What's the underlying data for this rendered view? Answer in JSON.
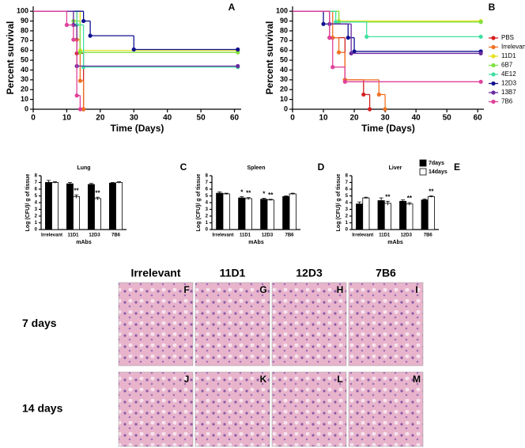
{
  "chart_data": [
    {
      "type": "survival",
      "panel": "A",
      "x_label": "Time (Days)",
      "y_label": "Percent survival",
      "xlim": [
        0,
        62
      ],
      "xticks": [
        0,
        10,
        20,
        30,
        40,
        50,
        60
      ],
      "ylim": [
        0,
        105
      ],
      "yticks": [
        0,
        10,
        20,
        30,
        40,
        50,
        60,
        70,
        80,
        90,
        100
      ],
      "series": [
        {
          "color": "#d42020",
          "x": [
            0,
            13,
            15
          ],
          "values": [
            100,
            57,
            0
          ]
        },
        {
          "color": "#f07020",
          "x": [
            0,
            13,
            14,
            15
          ],
          "values": [
            100,
            71,
            29,
            0
          ]
        },
        {
          "color": "#e8e020",
          "x": [
            0,
            14,
            61
          ],
          "values": [
            100,
            60,
            60
          ]
        },
        {
          "color": "#80e040",
          "x": [
            0,
            12,
            14,
            61
          ],
          "values": [
            100,
            90,
            58,
            58
          ]
        },
        {
          "color": "#40e0a0",
          "x": [
            0,
            13,
            15,
            61
          ],
          "values": [
            100,
            86,
            43,
            43
          ]
        },
        {
          "color": "#101090",
          "x": [
            0,
            15,
            17,
            30,
            61
          ],
          "values": [
            100,
            90,
            75,
            61,
            61
          ]
        },
        {
          "color": "#6a2aa0",
          "x": [
            0,
            12,
            13,
            61
          ],
          "values": [
            100,
            86,
            44,
            44
          ]
        },
        {
          "color": "#e0409a",
          "x": [
            0,
            10,
            12,
            13,
            14
          ],
          "values": [
            100,
            86,
            71,
            14,
            0
          ]
        }
      ]
    },
    {
      "type": "survival",
      "panel": "B",
      "x_label": "Time (Days)",
      "y_label": "Percent survival",
      "xlim": [
        0,
        62
      ],
      "xticks": [
        0,
        10,
        20,
        30,
        40,
        50,
        60
      ],
      "ylim": [
        0,
        105
      ],
      "yticks": [
        0,
        10,
        20,
        30,
        40,
        50,
        60,
        70,
        80,
        90,
        100
      ],
      "series": [
        {
          "name": "PBS",
          "color": "#d42020",
          "x": [
            0,
            12,
            17,
            23,
            25
          ],
          "values": [
            100,
            73,
            30,
            15,
            0
          ]
        },
        {
          "name": "Irrelevant",
          "color": "#f07020",
          "x": [
            0,
            13,
            15,
            17,
            28,
            30
          ],
          "values": [
            100,
            73,
            58,
            30,
            15,
            0
          ]
        },
        {
          "name": "11D1",
          "color": "#e8e020",
          "x": [
            0,
            15,
            61
          ],
          "values": [
            100,
            90,
            90
          ]
        },
        {
          "name": "6B7",
          "color": "#80e040",
          "x": [
            0,
            15,
            61
          ],
          "values": [
            100,
            89,
            89
          ]
        },
        {
          "name": "4E12",
          "color": "#40e0a0",
          "x": [
            0,
            14,
            24,
            61
          ],
          "values": [
            100,
            89,
            74,
            74
          ]
        },
        {
          "name": "12D3",
          "color": "#101090",
          "x": [
            0,
            10,
            18,
            20,
            61
          ],
          "values": [
            100,
            87,
            73,
            59,
            59
          ]
        },
        {
          "name": "13B7",
          "color": "#6a2aa0",
          "x": [
            0,
            12,
            19,
            61
          ],
          "values": [
            100,
            87,
            57,
            57
          ]
        },
        {
          "name": "7B6",
          "color": "#e0409a",
          "x": [
            0,
            12,
            13,
            17,
            61
          ],
          "values": [
            100,
            73,
            43,
            28,
            28
          ]
        }
      ]
    },
    {
      "type": "bar",
      "panel": "C",
      "title": "Lung",
      "x_label": "mAbs",
      "y_label": "Log (CFU)/ g of tissue",
      "categories": [
        "Irrelevant",
        "11D1",
        "12D3",
        "7B6"
      ],
      "ylim": [
        0,
        8
      ],
      "yticks": [
        0,
        1,
        2,
        3,
        4,
        5,
        6,
        7,
        8
      ],
      "series": [
        {
          "color": "#000000",
          "values": [
            7.0,
            6.8,
            6.7,
            6.9
          ],
          "errors": [
            0.3,
            0.2,
            0.15,
            0.1
          ],
          "significance": [
            null,
            null,
            null,
            null
          ]
        },
        {
          "color": "#ffffff",
          "values": [
            7.0,
            4.9,
            4.6,
            7.0
          ],
          "errors": [
            0.1,
            0.25,
            0.2,
            0.1
          ],
          "significance": [
            null,
            "**",
            "**",
            null
          ]
        }
      ]
    },
    {
      "type": "bar",
      "panel": "D",
      "title": "Spleen",
      "x_label": "mAbs",
      "y_label": "Log (CFU)/ g of tissue",
      "categories": [
        "Irrelevant",
        "11D1",
        "12D3",
        "7B6"
      ],
      "ylim": [
        0,
        8
      ],
      "yticks": [
        0,
        1,
        2,
        3,
        4,
        5,
        6,
        7,
        8
      ],
      "series": [
        {
          "color": "#000000",
          "values": [
            5.4,
            4.7,
            4.5,
            4.9
          ],
          "errors": [
            0.2,
            0.2,
            0.15,
            0.1
          ],
          "significance": [
            null,
            "*",
            "*",
            null
          ]
        },
        {
          "color": "#ffffff",
          "values": [
            5.3,
            4.6,
            4.4,
            5.3
          ],
          "errors": [
            0.1,
            0.15,
            0.1,
            0.1
          ],
          "significance": [
            null,
            "**",
            "**",
            null
          ]
        }
      ]
    },
    {
      "type": "bar",
      "panel": "E",
      "title": "Liver",
      "x_label": "mAbs",
      "y_label": "Log (CFU)/ g of tissue",
      "categories": [
        "Irrelevant",
        "11D1",
        "12D3",
        "7B6"
      ],
      "ylim": [
        0,
        8
      ],
      "yticks": [
        0,
        1,
        2,
        3,
        4,
        5,
        6,
        7,
        8
      ],
      "series": [
        {
          "name": "7days",
          "color": "#000000",
          "values": [
            3.8,
            4.3,
            4.2,
            4.4
          ],
          "errors": [
            0.3,
            0.4,
            0.2,
            0.15
          ],
          "significance": [
            null,
            null,
            null,
            null
          ]
        },
        {
          "name": "14days",
          "color": "#ffffff",
          "values": [
            4.7,
            3.9,
            3.8,
            4.9
          ],
          "errors": [
            0.1,
            0.3,
            0.2,
            0.1
          ],
          "significance": [
            null,
            "**",
            "**",
            "**"
          ]
        }
      ]
    }
  ],
  "histology": {
    "column_labels": [
      "Irrelevant",
      "11D1",
      "12D3",
      "7B6"
    ],
    "row_labels": [
      "7 days",
      "14 days"
    ],
    "panel_letters": [
      [
        "F",
        "G",
        "H",
        "I"
      ],
      [
        "J",
        "K",
        "L",
        "M"
      ]
    ]
  }
}
